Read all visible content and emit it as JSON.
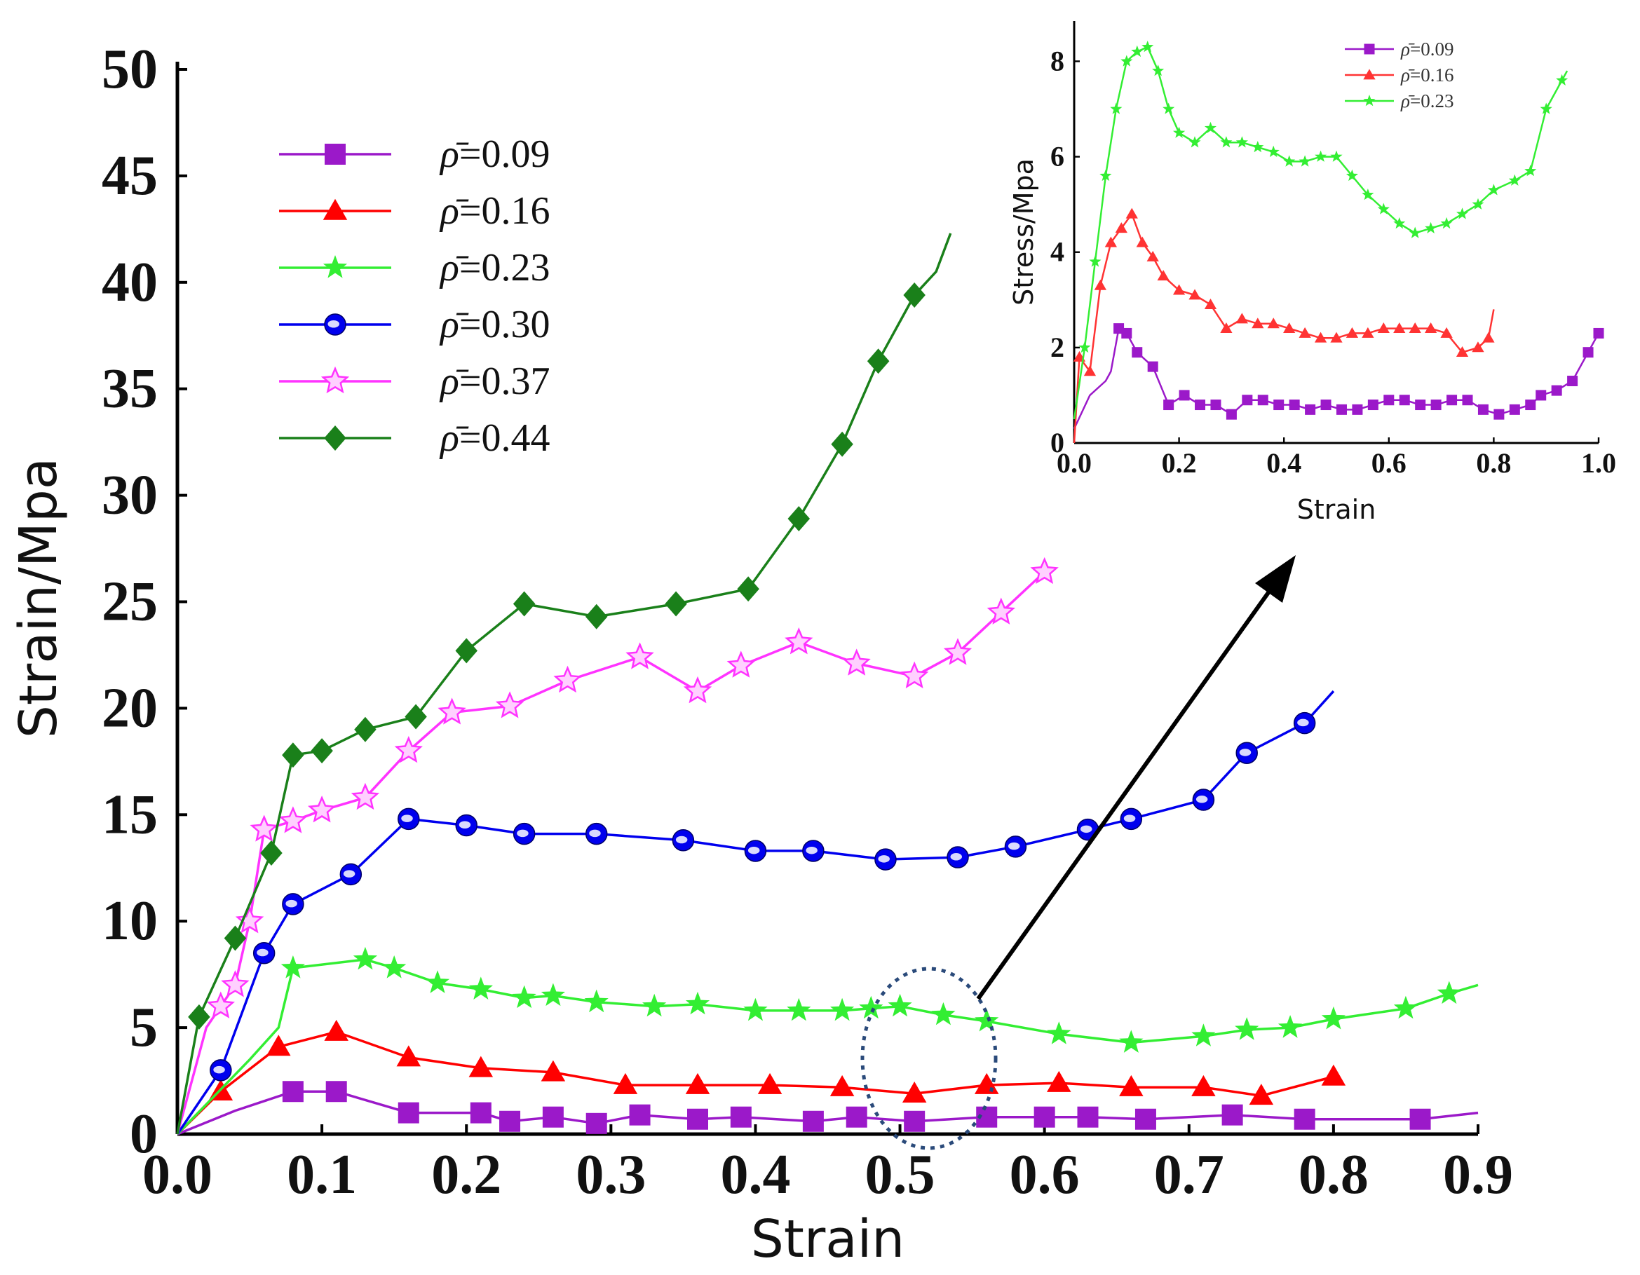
{
  "chart_data": [
    {
      "type": "line",
      "xlabel": "Strain",
      "ylabel": "Strain/Mpa",
      "xlim": [
        0,
        0.9
      ],
      "ylim": [
        0,
        50
      ],
      "xticks": [
        "0.0",
        "0.1",
        "0.2",
        "0.3",
        "0.4",
        "0.5",
        "0.6",
        "0.7",
        "0.8",
        "0.9"
      ],
      "yticks": [
        "0",
        "5",
        "10",
        "15",
        "20",
        "25",
        "30",
        "35",
        "40",
        "45",
        "50"
      ],
      "legend_position": "top-left",
      "series": [
        {
          "name": "=0.09",
          "symbol": "ρ̄",
          "color": "#9b19c9",
          "marker": "square",
          "x": [
            0,
            0.04,
            0.08,
            0.11,
            0.16,
            0.21,
            0.23,
            0.26,
            0.29,
            0.32,
            0.36,
            0.39,
            0.44,
            0.47,
            0.51,
            0.56,
            0.6,
            0.63,
            0.67,
            0.73,
            0.78,
            0.86,
            0.9
          ],
          "y": [
            0,
            1.1,
            2.0,
            2.0,
            1.0,
            1.0,
            0.6,
            0.8,
            0.5,
            0.9,
            0.7,
            0.8,
            0.6,
            0.8,
            0.6,
            0.8,
            0.8,
            0.8,
            0.7,
            0.9,
            0.7,
            0.7,
            1.0
          ],
          "marker_x": [
            0.08,
            0.11,
            0.16,
            0.21,
            0.23,
            0.26,
            0.29,
            0.32,
            0.36,
            0.39,
            0.44,
            0.47,
            0.51,
            0.56,
            0.6,
            0.63,
            0.67,
            0.73,
            0.78,
            0.86
          ]
        },
        {
          "name": "=0.16",
          "symbol": "ρ̄",
          "color": "#ff0000",
          "marker": "triangle",
          "x": [
            0,
            0.03,
            0.07,
            0.11,
            0.16,
            0.21,
            0.26,
            0.31,
            0.36,
            0.41,
            0.46,
            0.51,
            0.56,
            0.61,
            0.66,
            0.71,
            0.75,
            0.8
          ],
          "y": [
            0,
            2.0,
            4.1,
            4.8,
            3.6,
            3.1,
            2.9,
            2.3,
            2.3,
            2.3,
            2.2,
            1.9,
            2.3,
            2.4,
            2.2,
            2.2,
            1.8,
            2.7
          ],
          "marker_x": [
            0.03,
            0.07,
            0.11,
            0.16,
            0.21,
            0.26,
            0.31,
            0.36,
            0.41,
            0.46,
            0.51,
            0.56,
            0.61,
            0.66,
            0.71,
            0.75,
            0.8
          ]
        },
        {
          "name": "=0.23",
          "symbol": "ρ̄",
          "color": "#33ee33",
          "marker": "star",
          "x": [
            0,
            0.05,
            0.07,
            0.08,
            0.13,
            0.15,
            0.18,
            0.21,
            0.24,
            0.26,
            0.29,
            0.33,
            0.36,
            0.4,
            0.43,
            0.46,
            0.48,
            0.5,
            0.53,
            0.56,
            0.61,
            0.66,
            0.71,
            0.74,
            0.77,
            0.8,
            0.85,
            0.88,
            0.9
          ],
          "y": [
            0,
            3.5,
            5.0,
            7.8,
            8.2,
            7.8,
            7.1,
            6.8,
            6.4,
            6.5,
            6.2,
            6.0,
            6.1,
            5.8,
            5.8,
            5.8,
            5.9,
            6.0,
            5.6,
            5.3,
            4.7,
            4.3,
            4.6,
            4.9,
            5.0,
            5.4,
            5.9,
            6.6,
            7.0
          ],
          "marker_x": [
            0.08,
            0.13,
            0.15,
            0.18,
            0.21,
            0.24,
            0.26,
            0.29,
            0.33,
            0.36,
            0.4,
            0.43,
            0.46,
            0.48,
            0.5,
            0.53,
            0.56,
            0.61,
            0.66,
            0.71,
            0.74,
            0.77,
            0.8,
            0.85,
            0.88
          ]
        },
        {
          "name": "=0.30",
          "symbol": "ρ̄",
          "color": "#0000ee",
          "marker": "circle",
          "x": [
            0,
            0.03,
            0.06,
            0.08,
            0.12,
            0.16,
            0.2,
            0.24,
            0.29,
            0.35,
            0.4,
            0.44,
            0.49,
            0.54,
            0.58,
            0.63,
            0.66,
            0.71,
            0.74,
            0.78,
            0.8
          ],
          "y": [
            0,
            3.0,
            8.5,
            10.8,
            12.2,
            14.8,
            14.5,
            14.1,
            14.1,
            13.8,
            13.3,
            13.3,
            12.9,
            13.0,
            13.5,
            14.3,
            14.8,
            15.7,
            17.9,
            19.3,
            20.8
          ],
          "marker_x": [
            0.03,
            0.06,
            0.08,
            0.12,
            0.16,
            0.2,
            0.24,
            0.29,
            0.35,
            0.4,
            0.44,
            0.49,
            0.54,
            0.58,
            0.63,
            0.66,
            0.71,
            0.74,
            0.78
          ]
        },
        {
          "name": "=0.37",
          "symbol": "ρ̄",
          "color": "#ff33ff",
          "marker": "asterisk",
          "x": [
            0,
            0.02,
            0.04,
            0.05,
            0.06,
            0.08,
            0.1,
            0.13,
            0.16,
            0.19,
            0.23,
            0.27,
            0.32,
            0.36,
            0.39,
            0.43,
            0.47,
            0.51,
            0.54,
            0.57,
            0.6
          ],
          "y": [
            0,
            5.0,
            7.0,
            10.0,
            14.3,
            14.7,
            15.2,
            15.8,
            18.0,
            19.8,
            20.1,
            21.3,
            22.4,
            20.8,
            22.0,
            23.1,
            22.1,
            21.5,
            22.6,
            24.5,
            26.4
          ],
          "marker_x": [
            0.03,
            0.04,
            0.05,
            0.06,
            0.08,
            0.1,
            0.13,
            0.16,
            0.19,
            0.23,
            0.27,
            0.32,
            0.36,
            0.39,
            0.43,
            0.47,
            0.51,
            0.54,
            0.57,
            0.6
          ]
        },
        {
          "name": "=0.44",
          "symbol": "ρ̄",
          "color": "#1a801a",
          "marker": "diamond",
          "x": [
            0,
            0.015,
            0.04,
            0.065,
            0.08,
            0.1,
            0.13,
            0.165,
            0.2,
            0.24,
            0.29,
            0.345,
            0.395,
            0.43,
            0.46,
            0.485,
            0.51,
            0.525,
            0.535
          ],
          "y": [
            0,
            5.5,
            9.2,
            13.2,
            17.8,
            18.0,
            19.0,
            19.6,
            22.7,
            24.9,
            24.3,
            24.9,
            25.6,
            28.9,
            32.4,
            36.3,
            39.4,
            40.5,
            42.3
          ],
          "marker_x": [
            0.015,
            0.04,
            0.065,
            0.08,
            0.1,
            0.13,
            0.165,
            0.2,
            0.24,
            0.29,
            0.345,
            0.395,
            0.43,
            0.46,
            0.485,
            0.51
          ]
        }
      ]
    },
    {
      "type": "line",
      "xlabel": "Strain",
      "ylabel": "Stress/Mpa",
      "xlim": [
        0,
        1.0
      ],
      "ylim": [
        0,
        8.8
      ],
      "xticks": [
        "0.0",
        "0.2",
        "0.4",
        "0.6",
        "0.8",
        "1.0"
      ],
      "yticks": [
        "0",
        "2",
        "4",
        "6",
        "8"
      ],
      "legend_position": "top-right",
      "series": [
        {
          "name": "=0.09",
          "symbol": "ρ̄",
          "color": "#9b19c9",
          "marker": "square",
          "x": [
            0,
            0.03,
            0.06,
            0.07,
            0.085,
            0.1,
            0.12,
            0.15,
            0.18,
            0.21,
            0.24,
            0.27,
            0.3,
            0.33,
            0.36,
            0.39,
            0.42,
            0.45,
            0.48,
            0.51,
            0.54,
            0.57,
            0.6,
            0.63,
            0.66,
            0.69,
            0.72,
            0.75,
            0.78,
            0.81,
            0.84,
            0.87,
            0.89,
            0.92,
            0.95,
            0.98,
            1.0
          ],
          "y": [
            0.3,
            1.0,
            1.3,
            1.5,
            2.4,
            2.3,
            1.9,
            1.6,
            0.8,
            1.0,
            0.8,
            0.8,
            0.6,
            0.9,
            0.9,
            0.8,
            0.8,
            0.7,
            0.8,
            0.7,
            0.7,
            0.8,
            0.9,
            0.9,
            0.8,
            0.8,
            0.9,
            0.9,
            0.7,
            0.6,
            0.7,
            0.8,
            1.0,
            1.1,
            1.3,
            1.9,
            2.3
          ],
          "marker_x": [
            0.085,
            0.1,
            0.12,
            0.15,
            0.18,
            0.21,
            0.24,
            0.27,
            0.3,
            0.33,
            0.36,
            0.39,
            0.42,
            0.45,
            0.48,
            0.51,
            0.54,
            0.57,
            0.6,
            0.63,
            0.66,
            0.69,
            0.72,
            0.75,
            0.78,
            0.81,
            0.84,
            0.87,
            0.89,
            0.92,
            0.95,
            0.98,
            1.0
          ]
        },
        {
          "name": "=0.16",
          "symbol": "ρ̄",
          "color": "#ff3333",
          "marker": "triangle",
          "x": [
            0,
            0.01,
            0.03,
            0.05,
            0.07,
            0.09,
            0.11,
            0.13,
            0.15,
            0.17,
            0.2,
            0.23,
            0.26,
            0.29,
            0.32,
            0.35,
            0.38,
            0.41,
            0.44,
            0.47,
            0.5,
            0.53,
            0.56,
            0.59,
            0.62,
            0.65,
            0.68,
            0.71,
            0.74,
            0.77,
            0.79,
            0.8
          ],
          "y": [
            0,
            1.8,
            1.5,
            3.3,
            4.2,
            4.5,
            4.8,
            4.2,
            3.9,
            3.5,
            3.2,
            3.1,
            2.9,
            2.4,
            2.6,
            2.5,
            2.5,
            2.4,
            2.3,
            2.2,
            2.2,
            2.3,
            2.3,
            2.4,
            2.4,
            2.4,
            2.4,
            2.3,
            1.9,
            2.0,
            2.2,
            2.8
          ],
          "marker_x": [
            0.01,
            0.03,
            0.05,
            0.07,
            0.09,
            0.11,
            0.13,
            0.15,
            0.17,
            0.2,
            0.23,
            0.26,
            0.29,
            0.32,
            0.35,
            0.38,
            0.41,
            0.44,
            0.47,
            0.5,
            0.53,
            0.56,
            0.59,
            0.62,
            0.65,
            0.68,
            0.71,
            0.74,
            0.77,
            0.79
          ]
        },
        {
          "name": "=0.23",
          "symbol": "ρ̄",
          "color": "#33ee33",
          "marker": "star",
          "x": [
            0,
            0.02,
            0.04,
            0.06,
            0.08,
            0.1,
            0.12,
            0.14,
            0.16,
            0.18,
            0.2,
            0.23,
            0.26,
            0.29,
            0.32,
            0.35,
            0.38,
            0.41,
            0.44,
            0.47,
            0.5,
            0.53,
            0.56,
            0.59,
            0.62,
            0.65,
            0.68,
            0.71,
            0.74,
            0.77,
            0.8,
            0.84,
            0.87,
            0.9,
            0.93,
            0.94
          ],
          "y": [
            0.5,
            2.0,
            3.8,
            5.6,
            7.0,
            8.0,
            8.2,
            8.3,
            7.8,
            7.0,
            6.5,
            6.3,
            6.6,
            6.3,
            6.3,
            6.2,
            6.1,
            5.9,
            5.9,
            6.0,
            6.0,
            5.6,
            5.2,
            4.9,
            4.6,
            4.4,
            4.5,
            4.6,
            4.8,
            5.0,
            5.3,
            5.5,
            5.7,
            7.0,
            7.6,
            7.8
          ],
          "marker_x": [
            0.02,
            0.04,
            0.06,
            0.08,
            0.1,
            0.12,
            0.14,
            0.16,
            0.18,
            0.2,
            0.23,
            0.26,
            0.29,
            0.32,
            0.35,
            0.38,
            0.41,
            0.44,
            0.47,
            0.5,
            0.53,
            0.56,
            0.59,
            0.62,
            0.65,
            0.68,
            0.71,
            0.74,
            0.77,
            0.8,
            0.84,
            0.87,
            0.9,
            0.93
          ]
        }
      ]
    }
  ]
}
